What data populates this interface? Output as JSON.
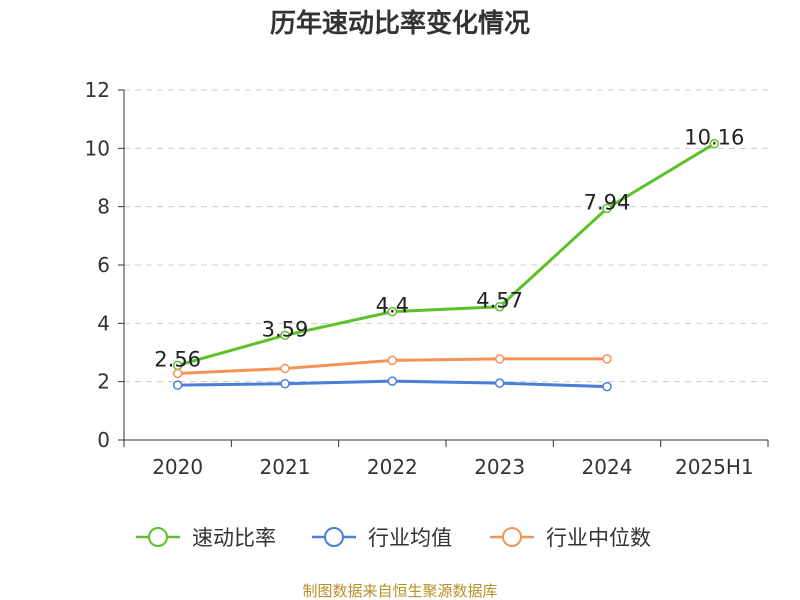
{
  "chart_data": {
    "type": "line",
    "title": "历年速动比率变化情况",
    "categories": [
      "2020",
      "2021",
      "2022",
      "2023",
      "2024",
      "2025H1"
    ],
    "ylim": [
      0,
      12
    ],
    "yticks": [
      "0",
      "2",
      "4",
      "6",
      "8",
      "10",
      "12"
    ],
    "grid": true,
    "legend_position": "bottom",
    "series": [
      {
        "name": "速动比率",
        "color": "#5cc12a",
        "values": [
          2.56,
          3.59,
          4.4,
          4.57,
          7.94,
          10.16
        ],
        "labels": [
          "2.56",
          "3.59",
          "4.4",
          "4.57",
          "7.94",
          "10.16"
        ]
      },
      {
        "name": "行业均值",
        "color": "#4a7fd9",
        "values": [
          1.88,
          1.93,
          2.02,
          1.95,
          1.83,
          null
        ]
      },
      {
        "name": "行业中位数",
        "color": "#f59357",
        "values": [
          2.28,
          2.45,
          2.73,
          2.78,
          2.78,
          null
        ]
      }
    ]
  },
  "source": "制图数据来自恒生聚源数据库"
}
